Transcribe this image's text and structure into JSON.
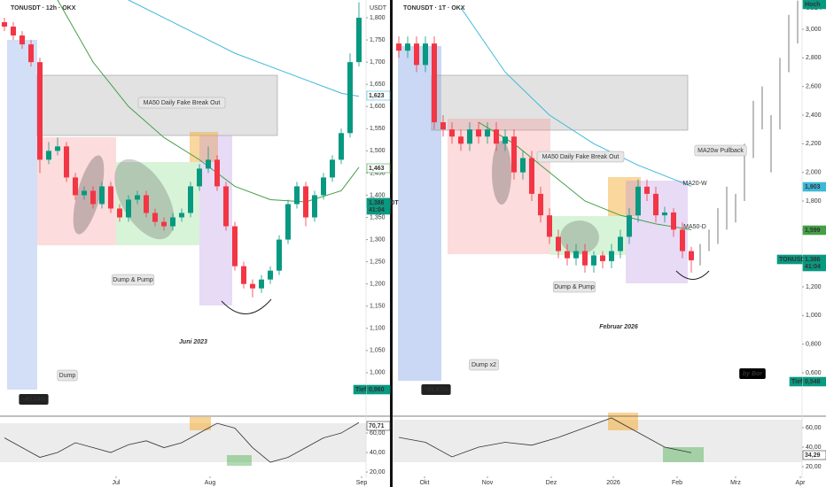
{
  "chart_data": [
    {
      "type": "candlestick",
      "title": "TONUSDT · 12h · OKX",
      "unit": "USDT",
      "up_color": "#089981",
      "down_color": "#f23645",
      "xlim": [
        -0.5,
        40.8
      ],
      "xticks": [
        {
          "value": 12.6,
          "label": "Jul"
        },
        {
          "value": 23.2,
          "label": "Aug"
        },
        {
          "value": 40.3,
          "label": "Sep"
        }
      ],
      "ylim": [
        902,
        1840
      ],
      "yticks": [
        {
          "value": 1000,
          "label": "1,000"
        },
        {
          "value": 1050,
          "label": "1,050"
        },
        {
          "value": 1100,
          "label": "1,100"
        },
        {
          "value": 1150,
          "label": "1,150"
        },
        {
          "value": 1200,
          "label": "1,200"
        },
        {
          "value": 1250,
          "label": "1,250"
        },
        {
          "value": 1300,
          "label": "1,300"
        },
        {
          "value": 1350,
          "label": "1,350"
        },
        {
          "value": 1400,
          "label": "1,400"
        },
        {
          "value": 1450,
          "label": "1,450"
        },
        {
          "value": 1500,
          "label": "1,500"
        },
        {
          "value": 1550,
          "label": "1,550"
        },
        {
          "value": 1600,
          "label": "1,600"
        },
        {
          "value": 1650,
          "label": "1,650"
        },
        {
          "value": 1700,
          "label": "1,700"
        },
        {
          "value": 1750,
          "label": "1,750"
        },
        {
          "value": 1800,
          "label": "1,800"
        }
      ],
      "open": [
        1790,
        1780,
        1760,
        1740,
        1700,
        1480,
        1500,
        1510,
        1440,
        1400,
        1410,
        1380,
        1420,
        1370,
        1350,
        1390,
        1400,
        1360,
        1340,
        1330,
        1350,
        1360,
        1420,
        1460,
        1480,
        1420,
        1330,
        1240,
        1200,
        1190,
        1210,
        1230,
        1300,
        1380,
        1420,
        1350,
        1400,
        1440,
        1480,
        1540,
        1700
      ],
      "high": [
        1800,
        1790,
        1770,
        1750,
        1710,
        1520,
        1530,
        1520,
        1450,
        1420,
        1420,
        1430,
        1430,
        1380,
        1400,
        1410,
        1410,
        1370,
        1350,
        1360,
        1370,
        1430,
        1470,
        1510,
        1490,
        1430,
        1340,
        1250,
        1210,
        1220,
        1240,
        1310,
        1390,
        1430,
        1430,
        1410,
        1450,
        1490,
        1550,
        1720,
        1835
      ],
      "low": [
        1770,
        1750,
        1730,
        1690,
        1450,
        1470,
        1490,
        1430,
        1390,
        1390,
        1370,
        1370,
        1360,
        1340,
        1340,
        1380,
        1350,
        1330,
        1320,
        1320,
        1340,
        1350,
        1410,
        1450,
        1410,
        1320,
        1230,
        1190,
        1170,
        1180,
        1200,
        1220,
        1290,
        1370,
        1330,
        1340,
        1390,
        1430,
        1470,
        1530,
        1690
      ],
      "close": [
        1780,
        1760,
        1740,
        1700,
        1480,
        1500,
        1510,
        1440,
        1400,
        1410,
        1380,
        1420,
        1370,
        1350,
        1390,
        1400,
        1360,
        1340,
        1330,
        1350,
        1360,
        1420,
        1460,
        1480,
        1420,
        1330,
        1240,
        1200,
        1190,
        1210,
        1230,
        1300,
        1380,
        1420,
        1350,
        1400,
        1440,
        1480,
        1540,
        1700,
        1800
      ],
      "lines": [
        {
          "color": "#43a047",
          "x": [
            6,
            10,
            14,
            18,
            22,
            26,
            30,
            34,
            38,
            40
          ],
          "values": [
            1840,
            1700,
            1600,
            1530,
            1480,
            1420,
            1390,
            1385,
            1410,
            1463
          ]
        },
        {
          "color": "#3db8d8",
          "x": [
            14,
            18,
            22,
            26,
            30,
            34,
            38,
            40
          ],
          "values": [
            1840,
            1800,
            1760,
            1720,
            1690,
            1660,
            1630,
            1623
          ]
        }
      ],
      "rsi": {
        "color": "#333",
        "ylim": [
          16.4,
          77.3
        ],
        "yticks": [
          {
            "value": 20,
            "label": "20,00"
          },
          {
            "value": 40,
            "label": "40,00"
          },
          {
            "value": 60,
            "label": "60,00"
          }
        ],
        "x": [
          0,
          2,
          4,
          6,
          8,
          10,
          12,
          14,
          16,
          18,
          20,
          22,
          24,
          26,
          28,
          30,
          32,
          34,
          36,
          38,
          40
        ],
        "values": [
          55,
          45,
          35,
          40,
          50,
          45,
          40,
          48,
          52,
          45,
          50,
          60,
          70,
          65,
          45,
          30,
          35,
          45,
          55,
          60,
          70.71
        ]
      },
      "notes": [
        "MA50 Daily Fake Break Out",
        "Dump & Pump",
        "Dump",
        "−45,14%",
        "Juni 2023"
      ],
      "price_labels": [
        {
          "text": "1,623",
          "color": "#3db8d8"
        },
        {
          "text": "1,463",
          "color": "#43a047"
        },
        {
          "text": "TONUSDT",
          "color": "#089981"
        },
        {
          "text": "1,386",
          "color": "#089981"
        },
        {
          "text": "41:04",
          "color": "#089981"
        },
        {
          "text": "Tief",
          "color": "#089981"
        },
        {
          "text": "0,960",
          "color": "#089981"
        },
        {
          "text": "70,71",
          "color": "#333"
        }
      ]
    },
    {
      "type": "candlestick",
      "title": "TONUSDT · 1T · OKX",
      "unit": "USDT",
      "up_color": "#089981",
      "down_color": "#f23645",
      "xlim": [
        -0.7,
        45.5
      ],
      "xticks": [
        {
          "value": 2.9,
          "label": "Okt"
        },
        {
          "value": 10,
          "label": "Nov"
        },
        {
          "value": 17.2,
          "label": "Dez"
        },
        {
          "value": 24.2,
          "label": "2026"
        },
        {
          "value": 31.4,
          "label": "Feb"
        },
        {
          "value": 38,
          "label": "Mrz"
        },
        {
          "value": 45.3,
          "label": "Apr"
        }
      ],
      "ylim": [
        297,
        3204
      ],
      "yticks": [
        {
          "value": 600,
          "label": "0,600"
        },
        {
          "value": 800,
          "label": "0,800"
        },
        {
          "value": 1000,
          "label": "1,000"
        },
        {
          "value": 1200,
          "label": "1,200"
        },
        {
          "value": 1400,
          "label": "1,400"
        },
        {
          "value": 1600,
          "label": "1,600"
        },
        {
          "value": 1800,
          "label": "1,800"
        },
        {
          "value": 2000,
          "label": "2,000"
        },
        {
          "value": 2200,
          "label": "2,200"
        },
        {
          "value": 2400,
          "label": "2,400"
        },
        {
          "value": 2600,
          "label": "2,600"
        },
        {
          "value": 2800,
          "label": "2,800"
        },
        {
          "value": 3000,
          "label": "3,000"
        }
      ],
      "open": [
        2900,
        2850,
        2900,
        2750,
        2900,
        2350,
        2300,
        2250,
        2200,
        2300,
        2250,
        2300,
        2200,
        2250,
        2000,
        2100,
        1850,
        1700,
        1550,
        1450,
        1400,
        1450,
        1350,
        1420,
        1380,
        1450,
        1550,
        1700,
        1900,
        1850,
        1700,
        1720,
        1600,
        1450
      ],
      "high": [
        2950,
        2950,
        2950,
        2950,
        2950,
        2400,
        2350,
        2300,
        2350,
        2350,
        2350,
        2350,
        2300,
        2300,
        2150,
        2150,
        1900,
        1750,
        1600,
        1500,
        1500,
        1500,
        1450,
        1450,
        1500,
        1600,
        1750,
        1950,
        1950,
        1900,
        1760,
        1750,
        1650,
        1480
      ],
      "low": [
        2800,
        2800,
        2700,
        2700,
        2300,
        2250,
        2200,
        2150,
        2150,
        2200,
        2200,
        2150,
        2150,
        1950,
        1950,
        1800,
        1650,
        1500,
        1400,
        1350,
        1350,
        1300,
        1300,
        1330,
        1330,
        1400,
        1500,
        1650,
        1800,
        1650,
        1650,
        1550,
        1400,
        1300
      ],
      "close": [
        2850,
        2900,
        2750,
        2900,
        2350,
        2300,
        2250,
        2200,
        2300,
        2250,
        2300,
        2200,
        2250,
        2000,
        2100,
        1850,
        1700,
        1550,
        1450,
        1400,
        1450,
        1350,
        1420,
        1380,
        1450,
        1550,
        1700,
        1900,
        1850,
        1700,
        1720,
        1600,
        1450,
        1386
      ],
      "forecast": {
        "color": "#bdbdbd",
        "x": [
          34,
          35,
          36,
          37,
          38,
          39,
          40,
          41,
          42,
          43,
          44,
          45
        ],
        "low": [
          1350,
          1450,
          1500,
          1600,
          1650,
          1800,
          2100,
          2300,
          2000,
          2300,
          2700,
          2900
        ],
        "high": [
          1500,
          1600,
          1750,
          1900,
          1850,
          2200,
          2500,
          2600,
          2400,
          2800,
          3100,
          3200
        ]
      },
      "lines": [
        {
          "color": "#43a047",
          "x": [
            9,
            13,
            17,
            21,
            25,
            29,
            33
          ],
          "values": [
            2350,
            2200,
            2000,
            1800,
            1700,
            1640,
            1599
          ]
        },
        {
          "color": "#3db8d8",
          "x": [
            7,
            12,
            17,
            22,
            27,
            33
          ],
          "values": [
            3150,
            2700,
            2400,
            2200,
            2050,
            1903
          ]
        }
      ],
      "rsi": {
        "color": "#333",
        "ylim": [
          10.9,
          71.8
        ],
        "yticks": [
          {
            "value": 20,
            "label": "20,00"
          },
          {
            "value": 40,
            "label": "40,00"
          },
          {
            "value": 60,
            "label": "60,00"
          }
        ],
        "x": [
          0,
          3,
          6,
          9,
          12,
          15,
          18,
          21,
          24,
          27,
          30,
          33
        ],
        "values": [
          50,
          45,
          30,
          40,
          45,
          42,
          50,
          60,
          70,
          55,
          40,
          34.29
        ]
      },
      "notes": [
        "MA50 Daily Fake Break Out",
        "Dump & Pump",
        "Dump x2",
        "−81,47%",
        "Februar 2026",
        "MA20w Pullback",
        "MA20-W",
        "MA50-D",
        "by Bor"
      ],
      "price_labels": [
        {
          "text": "Hoch",
          "color": "#089981"
        },
        {
          "text": "1,903",
          "color": "#3db8d8"
        },
        {
          "text": "1,599",
          "color": "#43a047"
        },
        {
          "text": "TONUSDT",
          "color": "#089981"
        },
        {
          "text": "1,386",
          "color": "#089981"
        },
        {
          "text": "41:04",
          "color": "#089981"
        },
        {
          "text": "Tief",
          "color": "#089981"
        },
        {
          "text": "0,548",
          "color": "#089981"
        },
        {
          "text": "34,29",
          "color": "#333"
        }
      ]
    }
  ]
}
